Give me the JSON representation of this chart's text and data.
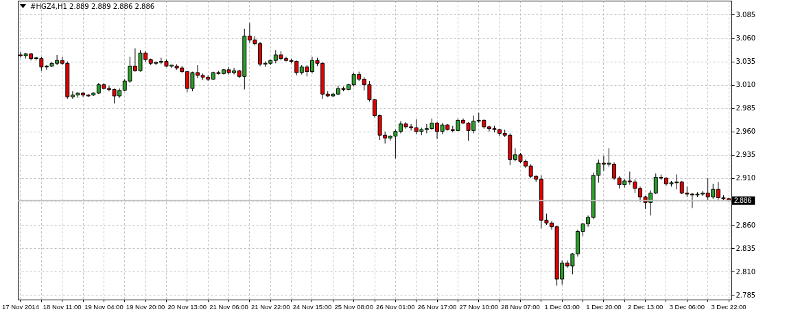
{
  "chart_data": {
    "type": "candlestick",
    "title": "#HGZ4,H1  2.889 2.889 2.886 2.886",
    "categories": [
      "17 Nov 2014",
      null,
      null,
      null,
      null,
      null,
      null,
      null,
      "18 Nov 11:00",
      null,
      null,
      null,
      null,
      null,
      null,
      null,
      "19 Nov 04:00",
      null,
      null,
      null,
      null,
      null,
      null,
      null,
      "19 Nov 20:00",
      null,
      null,
      null,
      null,
      null,
      null,
      null,
      "20 Nov 13:00",
      null,
      null,
      null,
      null,
      null,
      null,
      null,
      "21 Nov 06:00",
      null,
      null,
      null,
      null,
      null,
      null,
      null,
      "21 Nov 22:00",
      null,
      null,
      null,
      null,
      null,
      null,
      null,
      "24 Nov 15:00",
      null,
      null,
      null,
      null,
      null,
      null,
      null,
      "25 Nov 08:00",
      null,
      null,
      null,
      null,
      null,
      null,
      null,
      "26 Nov 01:00",
      null,
      null,
      null,
      null,
      null,
      null,
      null,
      "26 Nov 17:00",
      null,
      null,
      null,
      null,
      null,
      null,
      null,
      "27 Nov 10:00",
      null,
      null,
      null,
      null,
      null,
      null,
      null,
      "28 Nov 07:00",
      null,
      null,
      null,
      null,
      null,
      null,
      null,
      "1 Dec 03:00",
      null,
      null,
      null,
      null,
      null,
      null,
      null,
      "1 Dec 20:00",
      null,
      null,
      null,
      null,
      null,
      null,
      null,
      "2 Dec 13:00",
      null,
      null,
      null,
      null,
      null,
      null,
      null,
      "3 Dec 06:00",
      null,
      null,
      null,
      null,
      null,
      null,
      null,
      "3 Dec 22:00"
    ],
    "ohlc": [
      [
        3.042,
        3.045,
        3.039,
        3.041
      ],
      [
        3.041,
        3.044,
        3.038,
        3.043
      ],
      [
        3.043,
        3.044,
        3.036,
        3.038
      ],
      [
        3.038,
        3.04,
        3.036,
        3.039
      ],
      [
        3.038,
        3.04,
        3.025,
        3.029
      ],
      [
        3.029,
        3.031,
        3.026,
        3.03
      ],
      [
        3.03,
        3.034,
        3.029,
        3.033
      ],
      [
        3.033,
        3.042,
        3.031,
        3.036
      ],
      [
        3.036,
        3.04,
        3.031,
        3.033
      ],
      [
        3.033,
        3.035,
        2.995,
        2.997
      ],
      [
        2.997,
        3.003,
        2.995,
        2.999
      ],
      [
        2.999,
        3.002,
        2.996,
        3.001
      ],
      [
        3.001,
        3.002,
        2.997,
        2.999
      ],
      [
        2.999,
        3.0,
        2.997,
        2.998
      ],
      [
        2.999,
        3.002,
        2.998,
        3.001
      ],
      [
        3.001,
        3.012,
        3.0,
        3.01
      ],
      [
        3.01,
        3.012,
        3.005,
        3.006
      ],
      [
        3.006,
        3.009,
        3.003,
        3.005
      ],
      [
        3.005,
        3.006,
        2.99,
        2.998
      ],
      [
        2.998,
        3.006,
        2.996,
        3.004
      ],
      [
        3.004,
        3.016,
        3.003,
        3.014
      ],
      [
        3.014,
        3.04,
        3.012,
        3.03
      ],
      [
        3.03,
        3.049,
        3.024,
        3.025
      ],
      [
        3.025,
        3.047,
        3.024,
        3.044
      ],
      [
        3.044,
        3.046,
        3.034,
        3.037
      ],
      [
        3.037,
        3.038,
        3.031,
        3.033
      ],
      [
        3.033,
        3.035,
        3.031,
        3.034
      ],
      [
        3.034,
        3.039,
        3.032,
        3.035
      ],
      [
        3.035,
        3.037,
        3.029,
        3.03
      ],
      [
        3.03,
        3.031,
        3.028,
        3.031
      ],
      [
        3.03,
        3.032,
        3.026,
        3.028
      ],
      [
        3.028,
        3.03,
        3.023,
        3.024
      ],
      [
        3.024,
        3.025,
        3.002,
        3.006
      ],
      [
        3.006,
        3.024,
        3.003,
        3.023
      ],
      [
        3.023,
        3.031,
        3.017,
        3.02
      ],
      [
        3.02,
        3.022,
        3.015,
        3.018
      ],
      [
        3.018,
        3.02,
        3.014,
        3.016
      ],
      [
        3.016,
        3.024,
        3.015,
        3.023
      ],
      [
        3.023,
        3.025,
        3.021,
        3.022
      ],
      [
        3.022,
        3.027,
        3.021,
        3.026
      ],
      [
        3.026,
        3.029,
        3.021,
        3.023
      ],
      [
        3.023,
        3.028,
        3.021,
        3.025
      ],
      [
        3.025,
        3.026,
        3.017,
        3.019
      ],
      [
        3.019,
        3.07,
        3.005,
        3.062
      ],
      [
        3.062,
        3.076,
        3.055,
        3.058
      ],
      [
        3.058,
        3.062,
        3.052,
        3.054
      ],
      [
        3.054,
        3.056,
        3.03,
        3.032
      ],
      [
        3.032,
        3.035,
        3.029,
        3.033
      ],
      [
        3.033,
        3.037,
        3.031,
        3.036
      ],
      [
        3.036,
        3.047,
        3.033,
        3.042
      ],
      [
        3.042,
        3.046,
        3.036,
        3.038
      ],
      [
        3.038,
        3.04,
        3.035,
        3.036
      ],
      [
        3.036,
        3.038,
        3.033,
        3.035
      ],
      [
        3.035,
        3.036,
        3.02,
        3.023
      ],
      [
        3.023,
        3.031,
        3.021,
        3.029
      ],
      [
        3.029,
        3.031,
        3.019,
        3.024
      ],
      [
        3.024,
        3.04,
        3.022,
        3.036
      ],
      [
        3.036,
        3.039,
        3.03,
        3.033
      ],
      [
        3.033,
        3.034,
        2.995,
        3.0
      ],
      [
        3.0,
        3.003,
        2.997,
        2.998
      ],
      [
        2.998,
        3.001,
        2.997,
        3.0
      ],
      [
        3.0,
        3.009,
        2.999,
        3.006
      ],
      [
        3.006,
        3.008,
        3.003,
        3.005
      ],
      [
        3.005,
        3.011,
        3.004,
        3.01
      ],
      [
        3.01,
        3.023,
        3.008,
        3.021
      ],
      [
        3.021,
        3.024,
        3.014,
        3.016
      ],
      [
        3.016,
        3.018,
        3.004,
        3.01
      ],
      [
        3.01,
        3.014,
        2.992,
        2.994
      ],
      [
        2.994,
        2.995,
        2.975,
        2.977
      ],
      [
        2.977,
        2.978,
        2.951,
        2.956
      ],
      [
        2.956,
        2.96,
        2.947,
        2.953
      ],
      [
        2.953,
        2.956,
        2.95,
        2.955
      ],
      [
        2.955,
        2.962,
        2.931,
        2.96
      ],
      [
        2.96,
        2.971,
        2.958,
        2.968
      ],
      [
        2.968,
        2.97,
        2.963,
        2.965
      ],
      [
        2.965,
        2.968,
        2.961,
        2.964
      ],
      [
        2.964,
        2.973,
        2.957,
        2.96
      ],
      [
        2.96,
        2.964,
        2.956,
        2.962
      ],
      [
        2.962,
        2.968,
        2.958,
        2.963
      ],
      [
        2.963,
        2.974,
        2.962,
        2.969
      ],
      [
        2.969,
        2.97,
        2.952,
        2.96
      ],
      [
        2.96,
        2.969,
        2.957,
        2.967
      ],
      [
        2.967,
        2.968,
        2.961,
        2.962
      ],
      [
        2.962,
        2.966,
        2.959,
        2.961
      ],
      [
        2.961,
        2.974,
        2.96,
        2.972
      ],
      [
        2.972,
        2.974,
        2.968,
        2.969
      ],
      [
        2.969,
        2.97,
        2.95,
        2.961
      ],
      [
        2.961,
        2.977,
        2.958,
        2.971
      ],
      [
        2.971,
        2.98,
        2.969,
        2.972
      ],
      [
        2.972,
        2.973,
        2.963,
        2.965
      ],
      [
        2.965,
        2.966,
        2.96,
        2.963
      ],
      [
        2.963,
        2.966,
        2.959,
        2.962
      ],
      [
        2.962,
        2.963,
        2.955,
        2.958
      ],
      [
        2.958,
        2.962,
        2.954,
        2.956
      ],
      [
        2.956,
        2.958,
        2.924,
        2.93
      ],
      [
        2.93,
        2.942,
        2.928,
        2.935
      ],
      [
        2.935,
        2.937,
        2.926,
        2.928
      ],
      [
        2.928,
        2.93,
        2.921,
        2.923
      ],
      [
        2.923,
        2.925,
        2.91,
        2.912
      ],
      [
        2.912,
        2.913,
        2.906,
        2.909
      ],
      [
        2.909,
        2.913,
        2.856,
        2.865
      ],
      [
        2.865,
        2.872,
        2.86,
        2.862
      ],
      [
        2.862,
        2.864,
        2.855,
        2.858
      ],
      [
        2.858,
        2.859,
        2.795,
        2.802
      ],
      [
        2.802,
        2.822,
        2.796,
        2.819
      ],
      [
        2.819,
        2.822,
        2.814,
        2.816
      ],
      [
        2.816,
        2.83,
        2.807,
        2.829
      ],
      [
        2.829,
        2.855,
        2.826,
        2.853
      ],
      [
        2.853,
        2.862,
        2.848,
        2.861
      ],
      [
        2.861,
        2.87,
        2.858,
        2.868
      ],
      [
        2.868,
        2.916,
        2.866,
        2.913
      ],
      [
        2.913,
        2.93,
        2.905,
        2.926
      ],
      [
        2.926,
        2.934,
        2.918,
        2.925
      ],
      [
        2.925,
        2.942,
        2.922,
        2.926
      ],
      [
        2.925,
        2.927,
        2.908,
        2.91
      ],
      [
        2.91,
        2.912,
        2.899,
        2.903
      ],
      [
        2.903,
        2.909,
        2.9,
        2.907
      ],
      [
        2.907,
        2.917,
        2.903,
        2.906
      ],
      [
        2.906,
        2.909,
        2.894,
        2.899
      ],
      [
        2.899,
        2.901,
        2.885,
        2.89
      ],
      [
        2.89,
        2.891,
        2.877,
        2.884
      ],
      [
        2.884,
        2.897,
        2.87,
        2.894
      ],
      [
        2.894,
        2.915,
        2.893,
        2.911
      ],
      [
        2.911,
        2.914,
        2.908,
        2.91
      ],
      [
        2.91,
        2.911,
        2.902,
        2.904
      ],
      [
        2.904,
        2.907,
        2.901,
        2.905
      ],
      [
        2.905,
        2.914,
        2.898,
        2.906
      ],
      [
        2.906,
        2.907,
        2.893,
        2.894
      ],
      [
        2.894,
        2.901,
        2.89,
        2.893
      ],
      [
        2.893,
        2.894,
        2.878,
        2.892
      ],
      [
        2.892,
        2.895,
        2.89,
        2.893
      ],
      [
        2.893,
        2.896,
        2.891,
        2.894
      ],
      [
        2.894,
        2.91,
        2.886,
        2.89
      ],
      [
        2.89,
        2.904,
        2.888,
        2.898
      ],
      [
        2.898,
        2.906,
        2.887,
        2.889
      ],
      [
        2.889,
        2.892,
        2.886,
        2.888
      ],
      [
        2.888,
        2.889,
        2.885,
        2.886
      ]
    ],
    "colors": [
      "#e00000",
      "#2ca02c",
      "#e00000",
      "#2ca02c",
      "#e00000",
      "#2ca02c",
      "#2ca02c",
      "#2ca02c",
      "#e00000",
      "#e00000",
      "#2ca02c",
      "#2ca02c",
      "#e00000",
      "#e00000",
      "#2ca02c",
      "#2ca02c",
      "#e00000",
      "#e00000",
      "#e00000",
      "#2ca02c",
      "#2ca02c",
      "#2ca02c",
      "#e00000",
      "#2ca02c",
      "#e00000",
      "#e00000",
      "#2ca02c",
      "#2ca02c",
      "#e00000",
      "#2ca02c",
      "#e00000",
      "#e00000",
      "#e00000",
      "#2ca02c",
      "#e00000",
      "#e00000",
      "#e00000",
      "#2ca02c",
      "#e00000",
      "#2ca02c",
      "#e00000",
      "#2ca02c",
      "#e00000",
      "#2ca02c",
      "#e00000",
      "#e00000",
      "#e00000",
      "#2ca02c",
      "#2ca02c",
      "#2ca02c",
      "#e00000",
      "#e00000",
      "#e00000",
      "#e00000",
      "#2ca02c",
      "#e00000",
      "#2ca02c",
      "#e00000",
      "#e00000",
      "#e00000",
      "#2ca02c",
      "#2ca02c",
      "#e00000",
      "#2ca02c",
      "#2ca02c",
      "#e00000",
      "#e00000",
      "#e00000",
      "#e00000",
      "#e00000",
      "#e00000",
      "#2ca02c",
      "#2ca02c",
      "#2ca02c",
      "#e00000",
      "#e00000",
      "#e00000",
      "#2ca02c",
      "#2ca02c",
      "#2ca02c",
      "#e00000",
      "#2ca02c",
      "#e00000",
      "#e00000",
      "#2ca02c",
      "#e00000",
      "#e00000",
      "#2ca02c",
      "#2ca02c",
      "#e00000",
      "#e00000",
      "#e00000",
      "#e00000",
      "#e00000",
      "#e00000",
      "#2ca02c",
      "#e00000",
      "#e00000",
      "#e00000",
      "#e00000",
      "#e00000",
      "#e00000",
      "#e00000",
      "#e00000",
      "#2ca02c",
      "#e00000",
      "#2ca02c",
      "#2ca02c",
      "#2ca02c",
      "#2ca02c",
      "#2ca02c",
      "#2ca02c",
      "#e00000",
      "#2ca02c",
      "#e00000",
      "#e00000",
      "#2ca02c",
      "#e00000",
      "#e00000",
      "#e00000",
      "#e00000",
      "#2ca02c",
      "#2ca02c",
      "#e00000",
      "#e00000",
      "#2ca02c",
      "#2ca02c",
      "#e00000",
      "#e00000",
      "#e00000",
      "#2ca02c",
      "#2ca02c",
      "#e00000",
      "#2ca02c",
      "#e00000",
      "#e00000",
      "#e00000"
    ],
    "ylim": [
      2.78,
      3.1
    ],
    "yticks": [
      2.785,
      {
        "value": 2.81,
        "label": "2.810"
      },
      2.835,
      {
        "value": 2.86,
        "label": "2.860"
      },
      {
        "value": 2.885,
        "label": null
      },
      {
        "value": 2.91,
        "label": "2.910"
      },
      2.935,
      {
        "value": 2.96,
        "label": "2.960"
      },
      2.985,
      {
        "value": 3.01,
        "label": "3.010"
      },
      3.035,
      {
        "value": 3.06,
        "label": "3.060"
      },
      3.085
    ],
    "grid": true,
    "ref_lines": [
      {
        "axis": "y",
        "value": 2.886,
        "label": "2.886",
        "color": "#c0c0c0"
      }
    ]
  }
}
